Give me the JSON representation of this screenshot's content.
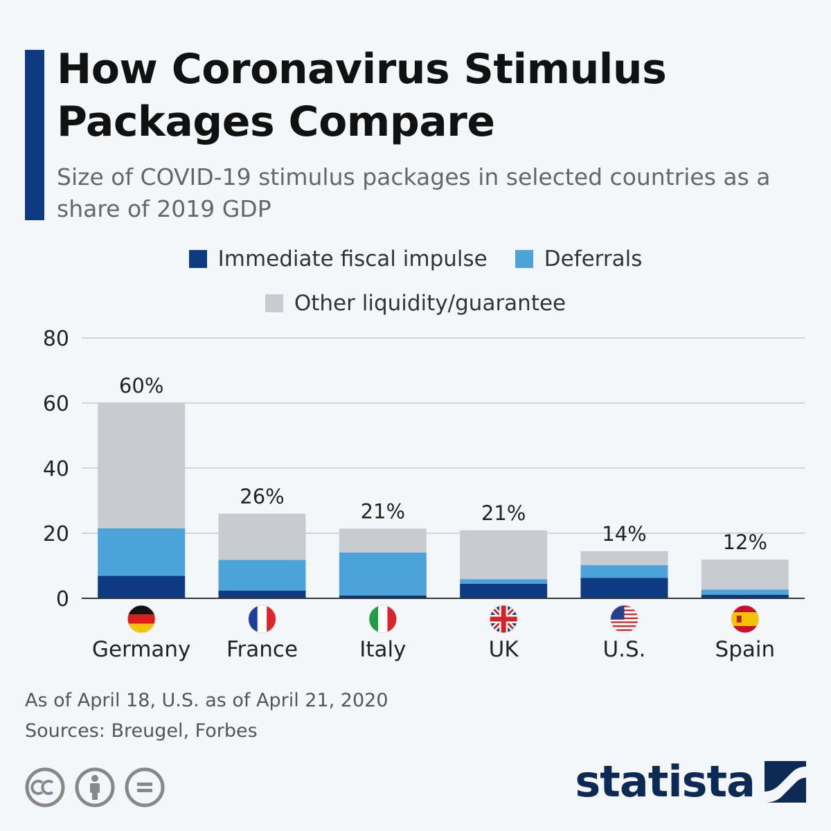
{
  "header": {
    "title": "How Coronavirus Stimulus Packages Compare",
    "subtitle": "Size of COVID-19 stimulus packages in selected countries as a share of 2019 GDP"
  },
  "legend": {
    "items": [
      {
        "label": "Immediate fiscal impulse",
        "color": "#0d3a80"
      },
      {
        "label": "Deferrals",
        "color": "#4ca3d9"
      },
      {
        "label": "Other liquidity/guarantee",
        "color": "#c8ccd0"
      }
    ]
  },
  "chart_data": {
    "type": "bar",
    "stacked": true,
    "title": "How Coronavirus Stimulus Packages Compare",
    "subtitle": "Size of COVID-19 stimulus packages in selected countries as a share of 2019 GDP",
    "xlabel": "",
    "ylabel": "",
    "ylim": [
      0,
      80
    ],
    "yticks": [
      0,
      20,
      40,
      60,
      80
    ],
    "grid": true,
    "legend_position": "top-center",
    "categories": [
      "Germany",
      "France",
      "Italy",
      "UK",
      "U.S.",
      "Spain"
    ],
    "flags": [
      "germany-flag",
      "france-flag",
      "italy-flag",
      "uk-flag",
      "us-flag",
      "spain-flag"
    ],
    "series": [
      {
        "name": "Immediate fiscal impulse",
        "color": "#0d3a80",
        "values": [
          6.9,
          2.4,
          0.9,
          4.5,
          6.3,
          1.1
        ]
      },
      {
        "name": "Deferrals",
        "color": "#4ca3d9",
        "values": [
          14.6,
          9.4,
          13.2,
          1.4,
          3.9,
          1.6
        ]
      },
      {
        "name": "Other liquidity/guarantee",
        "color": "#c8ccd0",
        "values": [
          38.5,
          14.2,
          7.3,
          15.0,
          4.3,
          9.2
        ]
      }
    ],
    "totals_labels": [
      "60%",
      "26%",
      "21%",
      "21%",
      "14%",
      "12%"
    ]
  },
  "footer": {
    "note": "As of April 18, U.S. as of April 21, 2020",
    "sources": "Sources: Breugel, Forbes",
    "brand": "statista"
  }
}
